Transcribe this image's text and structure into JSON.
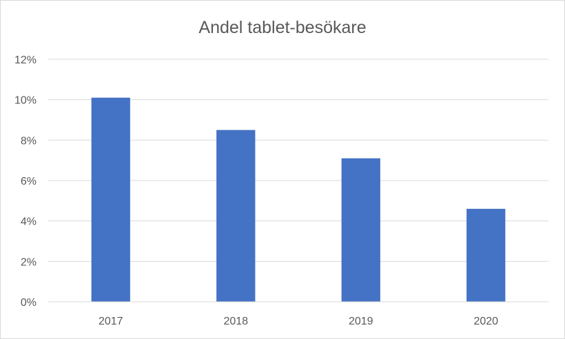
{
  "chart_data": {
    "type": "bar",
    "title": "Andel tablet-besökare",
    "xlabel": "",
    "ylabel": "",
    "categories": [
      "2017",
      "2018",
      "2019",
      "2020"
    ],
    "series": [
      {
        "values": [
          10.1,
          8.5,
          7.1,
          4.6
        ],
        "color": "#4472c4"
      }
    ],
    "ylim": [
      0,
      12
    ],
    "y_ticks": [
      0,
      2,
      4,
      6,
      8,
      10,
      12
    ],
    "y_tick_labels": [
      "0%",
      "2%",
      "4%",
      "6%",
      "8%",
      "10%",
      "12%"
    ],
    "y_unit": "%",
    "grid": true,
    "legend": "none"
  }
}
